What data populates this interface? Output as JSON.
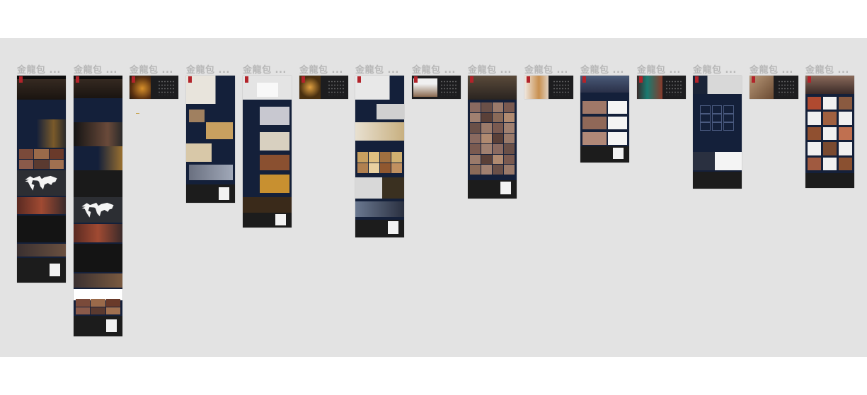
{
  "artboards": [
    {
      "label": "金龍包 ..."
    },
    {
      "label": "金龍包 ..."
    },
    {
      "label": "金龍包 ..."
    },
    {
      "label": "金龍包 ..."
    },
    {
      "label": "金龍包 ..."
    },
    {
      "label": "金龍包 ..."
    },
    {
      "label": "金龍包 ..."
    },
    {
      "label": "金龍包 ..."
    },
    {
      "label": "金龍包 ..."
    },
    {
      "label": "金龍包 ..."
    },
    {
      "label": "金龍包 ..."
    },
    {
      "label": "金龍包 ..."
    },
    {
      "label": "金龍包 ..."
    },
    {
      "label": "金龍包 ..."
    },
    {
      "label": "金龍包 ..."
    }
  ],
  "colors": {
    "canvas": "#e3e3e3",
    "navy": "#14203a",
    "dark": "#1d1d1f",
    "brand_red": "#b3232a",
    "gold": "#c7a24a",
    "label_gray": "#b7b7b7"
  }
}
